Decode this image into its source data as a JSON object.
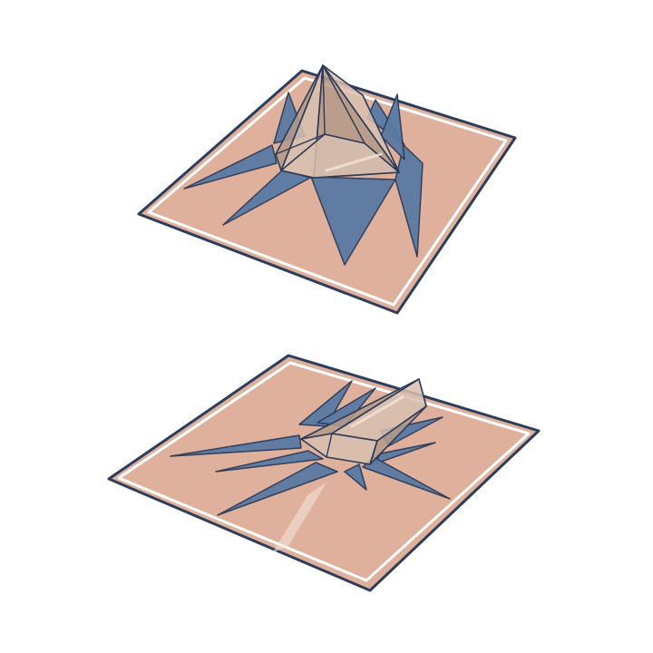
{
  "canvas": {
    "background": "#ffffff"
  },
  "palette": {
    "board_fill": "#dfb19c",
    "board_border": "#2d3e5c",
    "board_inner_line": "#ffffff",
    "shadow_fill": "#5a7aa3",
    "shadow_stroke": "#2b3a57",
    "object_fill": "#d8c0b0",
    "object_shade": "#b59a88",
    "object_stroke": "#2b3a57",
    "glare": "#f3e6de"
  },
  "illustrations": [
    {
      "id": "upper-scene",
      "description_name": "pyramid-crystal-on-mat",
      "items": [
        "mat",
        "cast-shadow",
        "pyramid"
      ]
    },
    {
      "id": "lower-scene",
      "description_name": "tilted-crystal-on-mat",
      "items": [
        "mat",
        "cast-shadow",
        "tilted-prism",
        "light-streak"
      ]
    }
  ]
}
